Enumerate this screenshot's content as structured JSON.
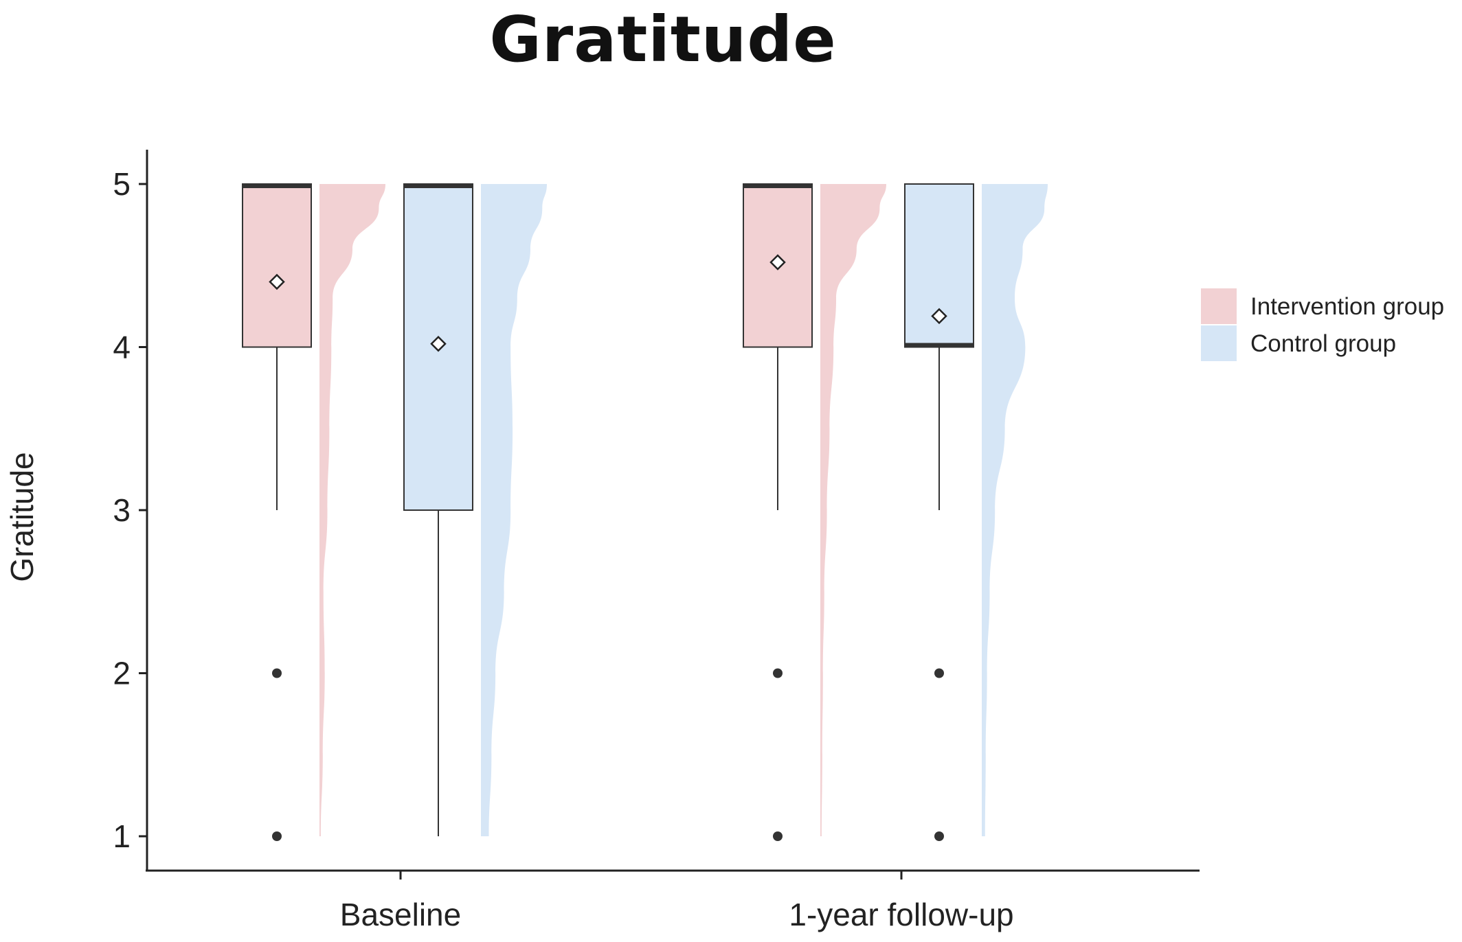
{
  "chart_data": {
    "type": "box",
    "title": "Gratitude",
    "ylabel": "Gratitude",
    "xlabel": "",
    "ylim": [
      1,
      5
    ],
    "yticks": [
      1,
      2,
      3,
      4,
      5
    ],
    "categories": [
      "Baseline",
      "1-year follow-up"
    ],
    "legend_position": "right",
    "grid": false,
    "series": [
      {
        "name": "Intervention group",
        "color": "#f2d1d3",
        "boxes": [
          {
            "category": "Baseline",
            "q1": 4,
            "median": 5,
            "q3": 5,
            "whisker_low": 3,
            "whisker_high": 5,
            "mean": 4.4,
            "outliers": [
              2,
              1
            ],
            "density": [
              [
                1,
                0.02
              ],
              [
                1.5,
                0.05
              ],
              [
                2,
                0.08
              ],
              [
                2.5,
                0.06
              ],
              [
                3,
                0.12
              ],
              [
                3.5,
                0.15
              ],
              [
                4,
                0.18
              ],
              [
                4.3,
                0.2
              ],
              [
                4.6,
                0.5
              ],
              [
                4.85,
                0.9
              ],
              [
                5,
                1.0
              ]
            ]
          },
          {
            "category": "1-year follow-up",
            "q1": 4,
            "median": 5,
            "q3": 5,
            "whisker_low": 3,
            "whisker_high": 5,
            "mean": 4.52,
            "outliers": [
              2,
              1
            ],
            "density": [
              [
                1,
                0.02
              ],
              [
                1.5,
                0.03
              ],
              [
                2,
                0.04
              ],
              [
                2.5,
                0.06
              ],
              [
                3,
                0.1
              ],
              [
                3.5,
                0.14
              ],
              [
                4,
                0.2
              ],
              [
                4.3,
                0.24
              ],
              [
                4.6,
                0.55
              ],
              [
                4.85,
                0.9
              ],
              [
                5,
                1.0
              ]
            ]
          }
        ]
      },
      {
        "name": "Control group",
        "color": "#d6e6f6",
        "boxes": [
          {
            "category": "Baseline",
            "q1": 3,
            "median": 5,
            "q3": 5,
            "whisker_low": 1,
            "whisker_high": 5,
            "mean": 4.02,
            "outliers": [],
            "density": [
              [
                1,
                0.12
              ],
              [
                1.5,
                0.16
              ],
              [
                2,
                0.22
              ],
              [
                2.5,
                0.35
              ],
              [
                3,
                0.45
              ],
              [
                3.5,
                0.48
              ],
              [
                4,
                0.45
              ],
              [
                4.3,
                0.55
              ],
              [
                4.6,
                0.75
              ],
              [
                4.85,
                0.93
              ],
              [
                5,
                1.0
              ]
            ]
          },
          {
            "category": "1-year follow-up",
            "q1": 4,
            "median": 4,
            "q3": 5,
            "whisker_low": 3,
            "whisker_high": 5,
            "mean": 4.19,
            "outliers": [
              2,
              1
            ],
            "density": [
              [
                1,
                0.05
              ],
              [
                1.5,
                0.06
              ],
              [
                2,
                0.08
              ],
              [
                2.5,
                0.12
              ],
              [
                3,
                0.2
              ],
              [
                3.5,
                0.35
              ],
              [
                4,
                0.66
              ],
              [
                4.3,
                0.5
              ],
              [
                4.6,
                0.62
              ],
              [
                4.85,
                0.95
              ],
              [
                5,
                1.0
              ]
            ]
          }
        ]
      }
    ]
  }
}
